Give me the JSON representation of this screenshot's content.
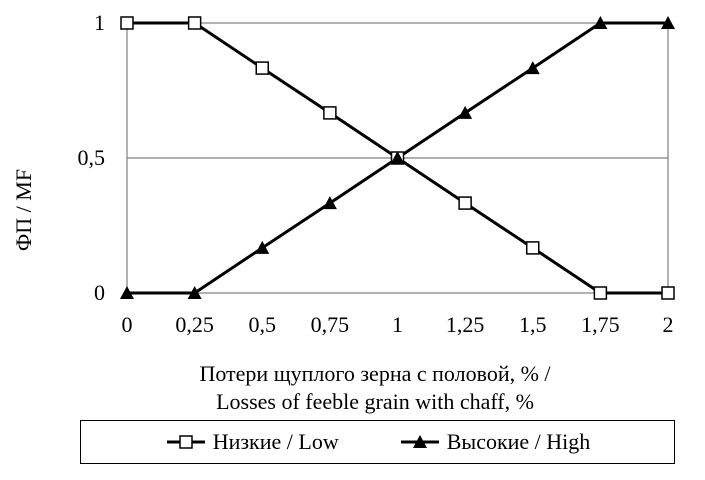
{
  "chart_data": {
    "type": "line",
    "x": [
      0,
      0.25,
      0.5,
      0.75,
      1,
      1.25,
      1.5,
      1.75,
      2
    ],
    "x_tick_labels": [
      "0",
      "0,25",
      "0,5",
      "0,75",
      "1",
      "1,25",
      "1,5",
      "1,75",
      "2"
    ],
    "y_tick_values": [
      0,
      0.5,
      1
    ],
    "y_tick_labels": [
      "0",
      "0,5",
      "1"
    ],
    "xlim": [
      0,
      2
    ],
    "ylim": [
      0,
      1
    ],
    "ylabel": "ФП / MF",
    "xlabel_line1": "Потери щуплого зерна с половой, % /",
    "xlabel_line2": "Losses of feeble grain with chaff, %",
    "grid": "horizontal",
    "legend_position": "bottom",
    "series": [
      {
        "name": "Низкие / Low",
        "marker": "open-square",
        "color": "#000000",
        "values": [
          1,
          1,
          0.833,
          0.667,
          0.5,
          0.333,
          0.167,
          0,
          0
        ]
      },
      {
        "name": "Высокие / High",
        "marker": "filled-triangle",
        "color": "#000000",
        "values": [
          0,
          0,
          0.167,
          0.333,
          0.5,
          0.667,
          0.833,
          1,
          1
        ]
      }
    ]
  }
}
